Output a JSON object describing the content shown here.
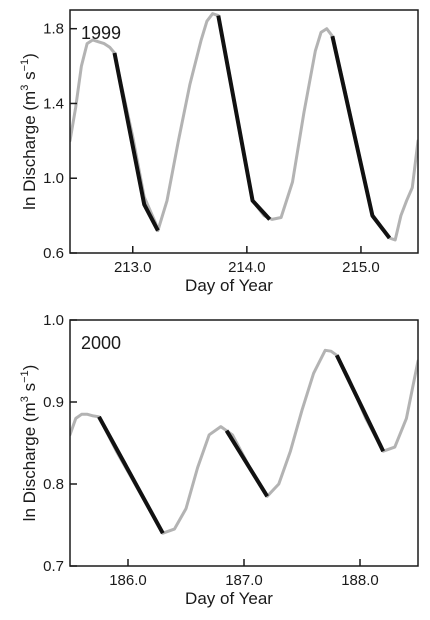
{
  "chart_data": [
    {
      "type": "line",
      "panel_label": "1999",
      "xlabel": "Day of Year",
      "ylabel": "ln Discharge (m",
      "ylabel_sup1": "3",
      "ylabel_mid": " s",
      "ylabel_sup2": "−1",
      "ylabel_end": ")",
      "xlim": [
        212.45,
        215.5
      ],
      "ylim": [
        0.6,
        1.9
      ],
      "xticks": [
        {
          "v": 213.0,
          "label": "213.0"
        },
        {
          "v": 214.0,
          "label": "214.0"
        },
        {
          "v": 215.0,
          "label": "215.0"
        }
      ],
      "yticks": [
        {
          "v": 0.6,
          "label": "0.6"
        },
        {
          "v": 1.0,
          "label": "1.0"
        },
        {
          "v": 1.4,
          "label": "1.4"
        },
        {
          "v": 1.8,
          "label": "1.8"
        }
      ],
      "series": [
        {
          "role": "discharge",
          "color": "#b3b3b3",
          "x": [
            212.45,
            212.5,
            212.55,
            212.6,
            212.65,
            212.7,
            212.75,
            212.8,
            212.84,
            212.9,
            213.0,
            213.1,
            213.2,
            213.22,
            213.3,
            213.4,
            213.5,
            213.6,
            213.65,
            213.7,
            213.75,
            213.85,
            213.95,
            214.05,
            214.15,
            214.22,
            214.3,
            214.4,
            214.5,
            214.6,
            214.65,
            214.7,
            214.75,
            214.85,
            215.0,
            215.1,
            215.2,
            215.25,
            215.3,
            215.35,
            215.4,
            215.45,
            215.5
          ],
          "y": [
            1.2,
            1.38,
            1.6,
            1.72,
            1.74,
            1.73,
            1.72,
            1.7,
            1.67,
            1.5,
            1.22,
            0.9,
            0.76,
            0.72,
            0.88,
            1.2,
            1.5,
            1.74,
            1.84,
            1.88,
            1.87,
            1.55,
            1.2,
            0.88,
            0.8,
            0.78,
            0.79,
            0.98,
            1.35,
            1.68,
            1.78,
            1.8,
            1.76,
            1.5,
            1.08,
            0.8,
            0.72,
            0.68,
            0.67,
            0.8,
            0.88,
            0.95,
            1.2
          ]
        },
        {
          "role": "recession",
          "color": "#111111",
          "segments": [
            {
              "x": [
                212.84,
                213.1,
                213.22
              ],
              "y": [
                1.67,
                0.86,
                0.72
              ]
            },
            {
              "x": [
                213.75,
                214.05,
                214.2
              ],
              "y": [
                1.87,
                0.88,
                0.78
              ]
            },
            {
              "x": [
                214.75,
                215.1,
                215.25
              ],
              "y": [
                1.76,
                0.8,
                0.68
              ]
            }
          ]
        }
      ]
    },
    {
      "type": "line",
      "panel_label": "2000",
      "xlabel": "Day of Year",
      "ylabel": "ln Discharge (m",
      "ylabel_sup1": "3",
      "ylabel_mid": " s",
      "ylabel_sup2": "−1",
      "ylabel_end": ")",
      "xlim": [
        185.5,
        188.5
      ],
      "ylim": [
        0.7,
        1.0
      ],
      "xticks": [
        {
          "v": 186.0,
          "label": "186.0"
        },
        {
          "v": 187.0,
          "label": "187.0"
        },
        {
          "v": 188.0,
          "label": "188.0"
        }
      ],
      "yticks": [
        {
          "v": 0.7,
          "label": "0.7"
        },
        {
          "v": 0.8,
          "label": "0.8"
        },
        {
          "v": 0.9,
          "label": "0.9"
        },
        {
          "v": 1.0,
          "label": "1.0"
        }
      ],
      "series": [
        {
          "role": "discharge",
          "color": "#b3b3b3",
          "x": [
            185.5,
            185.55,
            185.6,
            185.65,
            185.7,
            185.75,
            185.9,
            186.1,
            186.3,
            186.4,
            186.5,
            186.6,
            186.7,
            186.8,
            186.85,
            186.9,
            187.05,
            187.2,
            187.3,
            187.4,
            187.5,
            187.6,
            187.7,
            187.75,
            187.8,
            187.9,
            188.05,
            188.2,
            188.3,
            188.4,
            188.5
          ],
          "y": [
            0.86,
            0.88,
            0.885,
            0.885,
            0.883,
            0.882,
            0.84,
            0.79,
            0.74,
            0.745,
            0.77,
            0.82,
            0.86,
            0.87,
            0.865,
            0.86,
            0.82,
            0.785,
            0.8,
            0.84,
            0.89,
            0.935,
            0.963,
            0.962,
            0.957,
            0.93,
            0.88,
            0.84,
            0.845,
            0.88,
            0.95
          ]
        },
        {
          "role": "recession",
          "color": "#111111",
          "segments": [
            {
              "x": [
                185.75,
                186.3
              ],
              "y": [
                0.882,
                0.74
              ]
            },
            {
              "x": [
                186.85,
                187.2
              ],
              "y": [
                0.865,
                0.785
              ]
            },
            {
              "x": [
                187.8,
                188.2
              ],
              "y": [
                0.957,
                0.84
              ]
            }
          ]
        }
      ]
    }
  ]
}
